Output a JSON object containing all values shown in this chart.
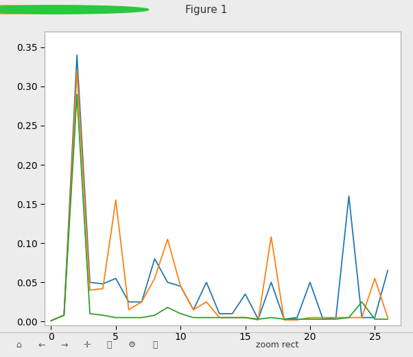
{
  "blue": {
    "x": [
      0,
      1,
      2,
      3,
      4,
      5,
      6,
      7,
      8,
      9,
      10,
      11,
      12,
      13,
      14,
      15,
      16,
      17,
      18,
      19,
      20,
      21,
      22,
      23,
      24,
      25,
      26
    ],
    "y": [
      0.001,
      0.008,
      0.34,
      0.05,
      0.048,
      0.055,
      0.025,
      0.025,
      0.08,
      0.05,
      0.045,
      0.015,
      0.05,
      0.01,
      0.01,
      0.035,
      0.003,
      0.05,
      0.003,
      0.005,
      0.05,
      0.003,
      0.005,
      0.16,
      0.005,
      0.005,
      0.065
    ]
  },
  "orange": {
    "x": [
      0,
      1,
      2,
      3,
      4,
      5,
      6,
      7,
      8,
      9,
      10,
      11,
      12,
      13,
      14,
      15,
      16,
      17,
      18,
      19,
      20,
      21,
      22,
      23,
      24,
      25,
      26
    ],
    "y": [
      0.001,
      0.008,
      0.32,
      0.04,
      0.042,
      0.155,
      0.015,
      0.025,
      0.055,
      0.105,
      0.045,
      0.015,
      0.025,
      0.005,
      0.005,
      0.005,
      0.002,
      0.108,
      0.002,
      0.002,
      0.005,
      0.005,
      0.005,
      0.005,
      0.005,
      0.055,
      0.005
    ]
  },
  "green": {
    "x": [
      0,
      1,
      2,
      3,
      4,
      5,
      6,
      7,
      8,
      9,
      10,
      11,
      12,
      13,
      14,
      15,
      16,
      17,
      18,
      19,
      20,
      21,
      22,
      23,
      24,
      25,
      26
    ],
    "y": [
      0.001,
      0.008,
      0.29,
      0.01,
      0.008,
      0.005,
      0.005,
      0.005,
      0.008,
      0.018,
      0.01,
      0.005,
      0.005,
      0.005,
      0.005,
      0.005,
      0.003,
      0.005,
      0.003,
      0.003,
      0.003,
      0.003,
      0.003,
      0.005,
      0.025,
      0.003,
      0.003
    ]
  },
  "blue_color": "#1f77b4",
  "orange_color": "#ff7f0e",
  "green_color": "#2ca02c",
  "ylim": [
    -0.005,
    0.37
  ],
  "xlim": [
    -0.5,
    27
  ],
  "window_bg": "#ececec",
  "titlebar_bg": "#d6d6d6",
  "plot_bg": "#ffffff",
  "figsize": [
    6.02,
    5.2
  ],
  "dpi": 100,
  "title_text": "Figure 1",
  "toolbar_text": "zoom rect",
  "yticks": [
    0.0,
    0.05,
    0.1,
    0.15,
    0.2,
    0.25,
    0.3,
    0.35
  ],
  "xticks": [
    0,
    5,
    10,
    15,
    20,
    25
  ]
}
